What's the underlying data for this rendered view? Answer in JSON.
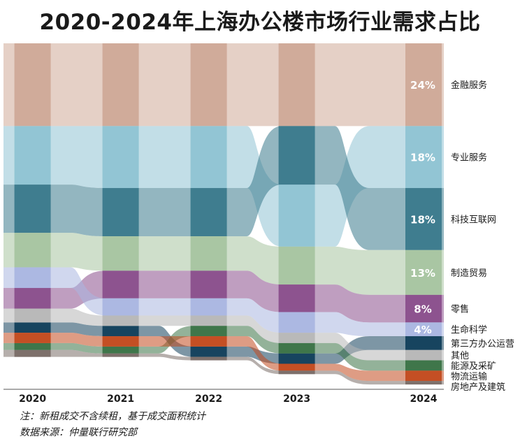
{
  "chart_data": {
    "type": "area",
    "subtype": "ranked-share-bump-area",
    "title": "2020-2024年上海办公楼市场行业需求占比",
    "x": [
      "2020",
      "2021",
      "2022",
      "2023",
      "2024"
    ],
    "unit": "%",
    "series": [
      {
        "name": "金融服务",
        "values": [
          24,
          24,
          24,
          24,
          24
        ],
        "color": "#cfa998",
        "label_2024": "24%"
      },
      {
        "name": "专业服务",
        "values": [
          17,
          18,
          18,
          18,
          18
        ],
        "color": "#8fc3d3",
        "label_2024": "18%"
      },
      {
        "name": "科技互联网",
        "values": [
          14,
          14,
          14,
          17,
          18
        ],
        "color": "#3a7a8c",
        "label_2024": "18%"
      },
      {
        "name": "制造贸易",
        "values": [
          10,
          10,
          10,
          11,
          13
        ],
        "color": "#a7c4a0",
        "label_2024": "13%"
      },
      {
        "name": "零售",
        "values": [
          6,
          8,
          8,
          8,
          8
        ],
        "color": "#8a4f8c",
        "label_2024": "8%"
      },
      {
        "name": "生命科学",
        "values": [
          6,
          5,
          5,
          6,
          4
        ],
        "color": "#aab6e0",
        "label_2024": "4%"
      },
      {
        "name": "第三方办公运营",
        "values": [
          3,
          3,
          3,
          3,
          4
        ],
        "color": "#123f5b",
        "label_2024": ""
      },
      {
        "name": "其他",
        "values": [
          4,
          3,
          3,
          3,
          3
        ],
        "color": "#b7b7b7",
        "label_2024": ""
      },
      {
        "name": "能源及采矿",
        "values": [
          2,
          2,
          3,
          3,
          3
        ],
        "color": "#3a7346",
        "label_2024": ""
      },
      {
        "name": "物流运输",
        "values": [
          3,
          3,
          3,
          2,
          3
        ],
        "color": "#c24b1f",
        "label_2024": ""
      },
      {
        "name": "房地产及建筑",
        "values": [
          2,
          1,
          1,
          1,
          1
        ],
        "color": "#7a6d67",
        "label_2024": ""
      }
    ],
    "stack_order_top_to_bottom": [
      [
        "金融服务",
        "专业服务",
        "科技互联网",
        "制造贸易",
        "生命科学",
        "零售",
        "其他",
        "第三方办公运营",
        "物流运输",
        "能源及采矿",
        "房地产及建筑"
      ],
      [
        "金融服务",
        "专业服务",
        "科技互联网",
        "制造贸易",
        "零售",
        "生命科学",
        "其他",
        "第三方办公运营",
        "物流运输",
        "能源及采矿",
        "房地产及建筑"
      ],
      [
        "金融服务",
        "专业服务",
        "科技互联网",
        "制造贸易",
        "零售",
        "生命科学",
        "其他",
        "能源及采矿",
        "物流运输",
        "第三方办公运营",
        "房地产及建筑"
      ],
      [
        "金融服务",
        "科技互联网",
        "专业服务",
        "制造贸易",
        "零售",
        "生命科学",
        "其他",
        "能源及采矿",
        "第三方办公运营",
        "物流运输",
        "房地产及建筑"
      ],
      [
        "金融服务",
        "专业服务",
        "科技互联网",
        "制造贸易",
        "零售",
        "生命科学",
        "第三方办公运营",
        "其他",
        "能源及采矿",
        "物流运输",
        "房地产及建筑"
      ]
    ],
    "ylim": [
      0,
      100
    ],
    "legend": "right",
    "notes": [
      "注：新租成交不含续租，基于成交面积统计",
      "数据来源：仲量联行研究部"
    ]
  }
}
